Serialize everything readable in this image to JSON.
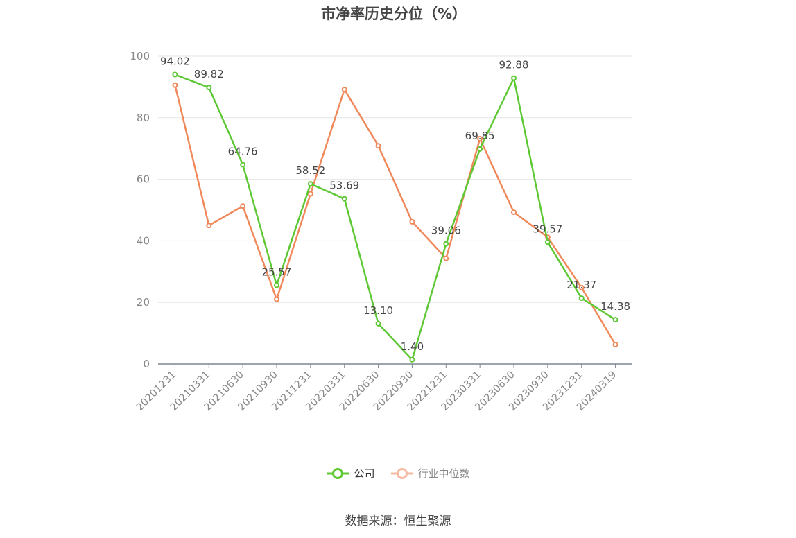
{
  "title": "市净率历史分位（%）",
  "source": "数据来源：恒生聚源",
  "legend": {
    "company": "公司",
    "industry": "行业中位数"
  },
  "colors": {
    "company": "#5dc833",
    "industry": "#f0885a",
    "industry_legend": "#f7b9a0"
  },
  "chart_data": {
    "type": "line",
    "title": "市净率历史分位（%）",
    "xlabel": "",
    "ylabel": "",
    "categories": [
      "20201231",
      "20210331",
      "20210630",
      "20210930",
      "20211231",
      "20220331",
      "20220630",
      "20220930",
      "20221231",
      "20230331",
      "20230630",
      "20230930",
      "20231231",
      "20240319"
    ],
    "ylim": [
      0,
      100
    ],
    "yticks": [
      0,
      20,
      40,
      60,
      80,
      100
    ],
    "grid": true,
    "legend_position": "bottom",
    "series": [
      {
        "name": "公司",
        "values": [
          94.02,
          89.82,
          64.76,
          25.57,
          58.52,
          53.69,
          13.1,
          1.4,
          39.06,
          69.85,
          92.88,
          39.57,
          21.37,
          14.38
        ],
        "labels": [
          "94.02",
          "89.82",
          "64.76",
          "25.57",
          "58.52",
          "53.69",
          "13.10",
          "1.40",
          "39.06",
          "69.85",
          "92.88",
          "39.57",
          "21.37",
          "14.38"
        ]
      },
      {
        "name": "行业中位数",
        "values": [
          90.6,
          45.0,
          51.3,
          21.0,
          55.3,
          89.2,
          70.9,
          46.2,
          34.3,
          73.2,
          49.3,
          41.2,
          24.8,
          6.3
        ]
      }
    ]
  }
}
